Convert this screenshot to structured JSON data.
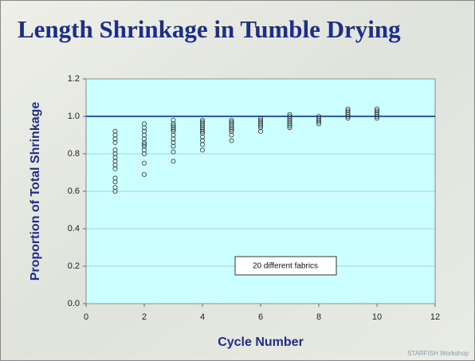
{
  "chart_data": {
    "type": "scatter",
    "title": "Length Shrinkage in Tumble Drying",
    "xlabel": "Cycle Number",
    "ylabel": "Proportion of Total Shrinkage",
    "annotation": "20 different fabrics",
    "footer": "STARFISH Workshop",
    "color": "#333333",
    "hline": 1.0,
    "hline_color": "#3355bb",
    "xlim": [
      0,
      12
    ],
    "xticks": [
      0,
      2,
      4,
      6,
      8,
      10,
      12
    ],
    "ylim": [
      0,
      1.2
    ],
    "yticks": [
      {
        "value": 0,
        "label": "0.0"
      },
      0.2,
      0.4,
      0.6,
      0.8,
      {
        "value": 1,
        "label": "1.0"
      },
      1.2
    ],
    "grid": true,
    "x": [
      1,
      1,
      1,
      1,
      1,
      1,
      1,
      1,
      1,
      1,
      1,
      1,
      1,
      1,
      2,
      2,
      2,
      2,
      2,
      2,
      2,
      2,
      2,
      2,
      2,
      2,
      3,
      3,
      3,
      3,
      3,
      3,
      3,
      3,
      3,
      3,
      3,
      3,
      4,
      4,
      4,
      4,
      4,
      4,
      4,
      4,
      4,
      4,
      4,
      4,
      5,
      5,
      5,
      5,
      5,
      5,
      5,
      5,
      5,
      6,
      6,
      6,
      6,
      6,
      6,
      6,
      7,
      7,
      7,
      7,
      7,
      7,
      7,
      7,
      8,
      8,
      8,
      8,
      8,
      9,
      9,
      9,
      9,
      9,
      9,
      10,
      10,
      10,
      10,
      10,
      10
    ],
    "values": [
      0.6,
      0.62,
      0.65,
      0.67,
      0.72,
      0.74,
      0.76,
      0.78,
      0.8,
      0.82,
      0.86,
      0.88,
      0.9,
      0.92,
      0.69,
      0.75,
      0.8,
      0.82,
      0.84,
      0.85,
      0.86,
      0.88,
      0.9,
      0.92,
      0.94,
      0.96,
      0.76,
      0.81,
      0.84,
      0.86,
      0.88,
      0.9,
      0.92,
      0.93,
      0.94,
      0.95,
      0.96,
      0.98,
      0.82,
      0.85,
      0.87,
      0.89,
      0.91,
      0.92,
      0.93,
      0.94,
      0.95,
      0.96,
      0.97,
      0.98,
      0.87,
      0.9,
      0.92,
      0.93,
      0.94,
      0.95,
      0.96,
      0.97,
      0.98,
      0.92,
      0.94,
      0.95,
      0.96,
      0.97,
      0.98,
      0.99,
      0.94,
      0.95,
      0.96,
      0.97,
      0.98,
      0.99,
      1.0,
      1.01,
      0.96,
      0.97,
      0.98,
      0.99,
      1.0,
      0.99,
      1.0,
      1.01,
      1.02,
      1.03,
      1.04,
      0.99,
      1.0,
      1.01,
      1.02,
      1.03,
      1.04
    ]
  }
}
